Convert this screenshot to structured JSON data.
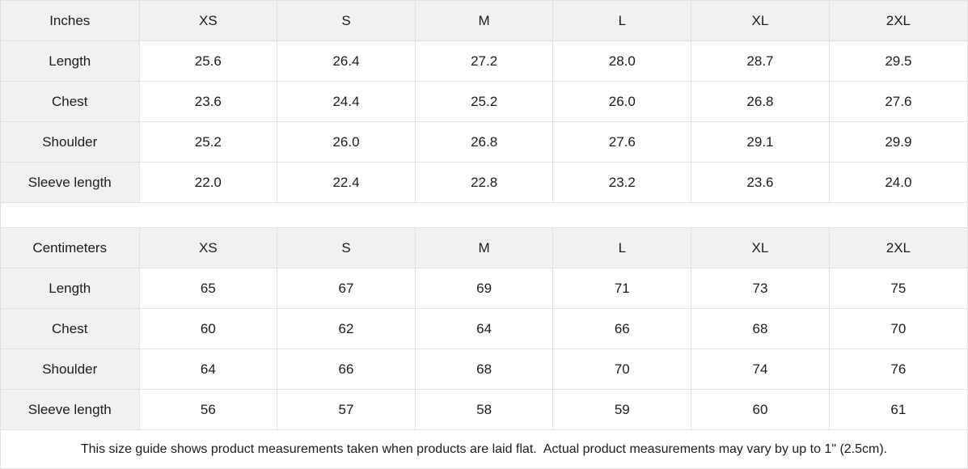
{
  "footer_note": "This size guide shows product measurements taken when products are laid flat.  Actual product measurements may vary by up to 1\" (2.5cm).",
  "colors": {
    "header_bg": "#f0f1f1",
    "border": "#e0e0e0",
    "text": "#1c1c1c",
    "cell_bg": "#ffffff"
  },
  "tables": [
    {
      "unit_label": "Inches",
      "sizes": [
        "XS",
        "S",
        "M",
        "L",
        "XL",
        "2XL"
      ],
      "rows": [
        {
          "label": "Length",
          "values": [
            "25.6",
            "26.4",
            "27.2",
            "28.0",
            "28.7",
            "29.5"
          ]
        },
        {
          "label": "Chest",
          "values": [
            "23.6",
            "24.4",
            "25.2",
            "26.0",
            "26.8",
            "27.6"
          ]
        },
        {
          "label": "Shoulder",
          "values": [
            "25.2",
            "26.0",
            "26.8",
            "27.6",
            "29.1",
            "29.9"
          ]
        },
        {
          "label": "Sleeve length",
          "values": [
            "22.0",
            "22.4",
            "22.8",
            "23.2",
            "23.6",
            "24.0"
          ]
        }
      ]
    },
    {
      "unit_label": "Centimeters",
      "sizes": [
        "XS",
        "S",
        "M",
        "L",
        "XL",
        "2XL"
      ],
      "rows": [
        {
          "label": "Length",
          "values": [
            "65",
            "67",
            "69",
            "71",
            "73",
            "75"
          ]
        },
        {
          "label": "Chest",
          "values": [
            "60",
            "62",
            "64",
            "66",
            "68",
            "70"
          ]
        },
        {
          "label": "Shoulder",
          "values": [
            "64",
            "66",
            "68",
            "70",
            "74",
            "76"
          ]
        },
        {
          "label": "Sleeve length",
          "values": [
            "56",
            "57",
            "58",
            "59",
            "60",
            "61"
          ]
        }
      ]
    }
  ]
}
